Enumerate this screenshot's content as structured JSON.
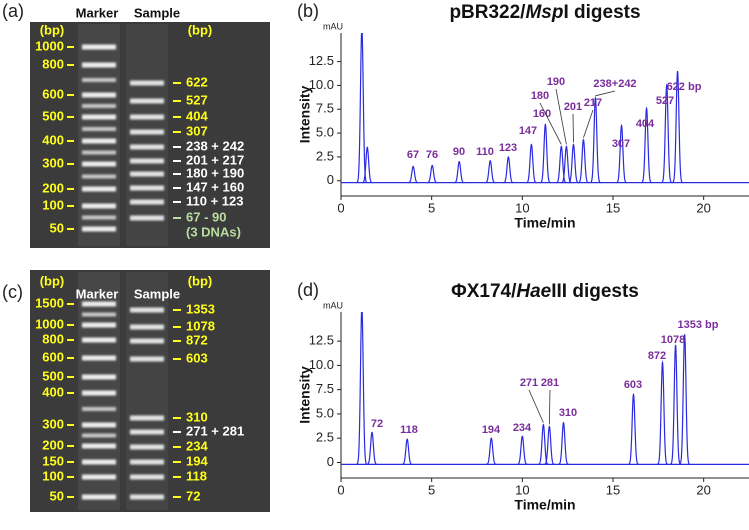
{
  "chart_data": [
    {
      "type": "chromatogram",
      "panel": "(b)",
      "title": [
        "pBR322/",
        "Msp",
        "I digests"
      ],
      "unit": "mAU",
      "ylabel": "Intensity",
      "xlabel": "Time/min",
      "color": "#2a2ae0",
      "label_color": "#7a2d9c",
      "xlim": [
        0,
        22.5
      ],
      "xticks": [
        0,
        5,
        10,
        15,
        20
      ],
      "ylim": [
        -1.6,
        15.5
      ],
      "yticks": [
        0,
        2.5,
        {
          "value": 5,
          "label": "5.0"
        },
        7.5,
        {
          "value": 10,
          "label": "10.0"
        },
        12.5
      ],
      "baseline": -0.2,
      "x": [
        1.15,
        1.45,
        3.98,
        5.03,
        6.52,
        8.23,
        9.23,
        10.5,
        11.27,
        12.15,
        12.43,
        12.82,
        13.37,
        14.03,
        15.47,
        16.85,
        17.96,
        18.56
      ],
      "values": [
        16,
        3.5,
        1.5,
        1.6,
        2.0,
        2.1,
        2.5,
        3.8,
        5.9,
        3.6,
        3.6,
        3.8,
        4.3,
        8.7,
        5.8,
        7.6,
        10.0,
        11.5
      ],
      "peak_labels": [
        null,
        null,
        "67",
        "76",
        "90",
        "110",
        "123",
        "147",
        "160",
        "180",
        "190",
        "201",
        "217",
        "238+242",
        "307",
        "404",
        "527",
        "622 bp"
      ]
    },
    {
      "type": "chromatogram",
      "panel": "(d)",
      "title": [
        "ΦX174/",
        "Hae",
        "III digests"
      ],
      "unit": "mAU",
      "ylabel": "Intensity",
      "xlabel": "Time/min",
      "color": "#2a2ae0",
      "label_color": "#7a2d9c",
      "xlim": [
        0,
        22.5
      ],
      "xticks": [
        0,
        5,
        10,
        15,
        20
      ],
      "ylim": [
        -1.6,
        15.5
      ],
      "yticks": [
        0,
        2.5,
        {
          "value": 5,
          "label": "5.0"
        },
        7.5,
        {
          "value": 10,
          "label": "10.0"
        },
        12.5
      ],
      "baseline": -0.2,
      "x": [
        1.15,
        1.71,
        3.65,
        8.29,
        10.0,
        11.16,
        11.49,
        12.27,
        16.13,
        17.73,
        18.45,
        18.95
      ],
      "values": [
        16,
        3.1,
        2.4,
        2.5,
        2.7,
        3.9,
        3.7,
        4.1,
        7.0,
        10.3,
        12.1,
        13.2
      ],
      "peak_labels": [
        null,
        "72",
        "118",
        "194",
        "234",
        "271",
        "281",
        "310",
        "603",
        "872",
        "1078",
        "1353 bp"
      ]
    }
  ],
  "gels": [
    {
      "panel": "(a)",
      "lane_headers": [
        "Marker",
        "Sample"
      ],
      "unit_labels": [
        "(bp)",
        "(bp)"
      ],
      "marker_labels": [
        "1000",
        "800",
        "600",
        "500",
        "400",
        "300",
        "200",
        "100",
        "50"
      ],
      "sample_labels": [
        {
          "text": "622",
          "color": "#ffff1a"
        },
        {
          "text": "527",
          "color": "#ffff1a"
        },
        {
          "text": "404",
          "color": "#ffff1a"
        },
        {
          "text": "307",
          "color": "#ffff1a"
        },
        {
          "text": "238 + 242",
          "color": "#ffffff"
        },
        {
          "text": "201 + 217",
          "color": "#ffffff"
        },
        {
          "text": "180 + 190",
          "color": "#ffffff"
        },
        {
          "text": "147 + 160",
          "color": "#ffffff"
        },
        {
          "text": "110 + 123",
          "color": "#ffffff"
        },
        {
          "text": "67 - 90",
          "color": "#b9dca0"
        },
        {
          "text": "(3 DNAs)",
          "color": "#b9dca0"
        }
      ]
    },
    {
      "panel": "(c)",
      "lane_headers": [
        "Marker",
        "Sample"
      ],
      "unit_labels": [
        "(bp)",
        "(bp)"
      ],
      "marker_labels": [
        "1500",
        "1000",
        "800",
        "600",
        "500",
        "400",
        "300",
        "200",
        "150",
        "100",
        "50"
      ],
      "sample_labels": [
        {
          "text": "1353",
          "color": "#ffff1a"
        },
        {
          "text": "1078",
          "color": "#ffff1a"
        },
        {
          "text": "872",
          "color": "#ffff1a"
        },
        {
          "text": "603",
          "color": "#ffff1a"
        },
        {
          "text": "310",
          "color": "#ffff1a"
        },
        {
          "text": "271 + 281",
          "color": "#ffffff"
        },
        {
          "text": "234",
          "color": "#ffff1a"
        },
        {
          "text": "194",
          "color": "#ffff1a"
        },
        {
          "text": "118",
          "color": "#ffff1a"
        },
        {
          "text": "72",
          "color": "#ffff1a"
        }
      ]
    }
  ]
}
